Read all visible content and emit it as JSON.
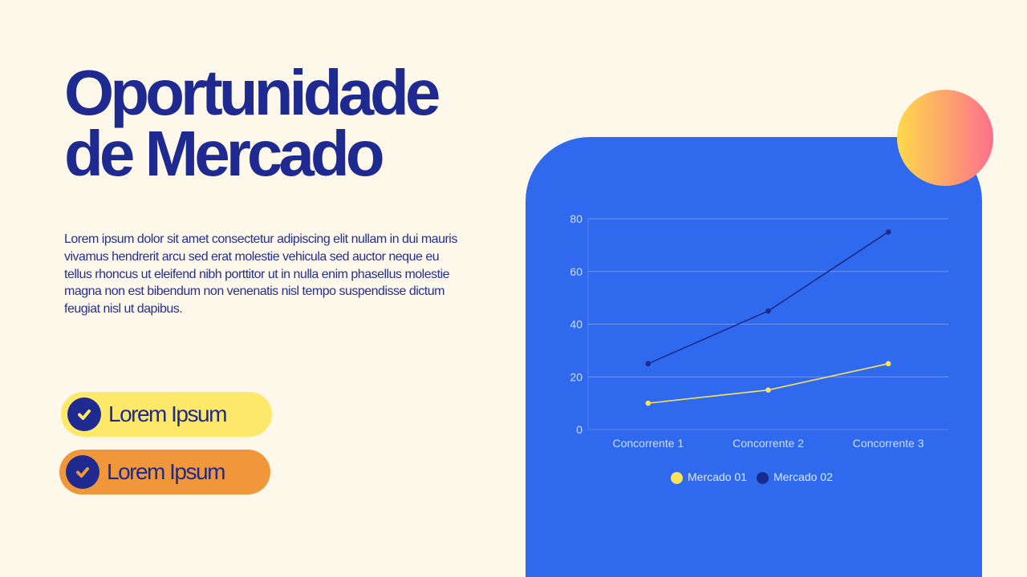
{
  "title": {
    "line1": "Oportunidade",
    "line2": "de Mercado"
  },
  "body_text": "Lorem ipsum dolor sit amet consectetur adipiscing elit nullam in dui mauris vivamus hendrerit arcu sed erat molestie vehicula sed auctor neque eu tellus rhoncus ut eleifend nibh porttitor ut in nulla enim phasellus molestie magna non est bibendum non venenatis nisl tempo suspendisse dictum feugiat nisl ut dapibus.",
  "pills": [
    {
      "label": "Lorem Ipsum",
      "icon": "check-icon",
      "color": "#fde869"
    },
    {
      "label": "Lorem Ipsum",
      "icon": "check-icon",
      "color": "#ef973a"
    }
  ],
  "colors": {
    "background": "#fdf8ea",
    "primary_text": "#1e2a8f",
    "panel": "#2f6aee",
    "orb_gradient": [
      "#fdd94a",
      "#fd6f8c"
    ]
  },
  "chart_data": {
    "type": "line",
    "title": "",
    "xlabel": "",
    "ylabel": "",
    "categories": [
      "Concorrente 1",
      "Concorrente 2",
      "Concorrente 3"
    ],
    "series": [
      {
        "name": "Mercado 01",
        "values": [
          10,
          15,
          25
        ],
        "color": "#fde35a"
      },
      {
        "name": "Mercado 02",
        "values": [
          25,
          45,
          75
        ],
        "color": "#1b2a8c"
      }
    ],
    "ylim": [
      0,
      80
    ],
    "yticks": [
      0,
      20,
      40,
      60,
      80
    ],
    "grid": true,
    "legend_position": "bottom"
  }
}
